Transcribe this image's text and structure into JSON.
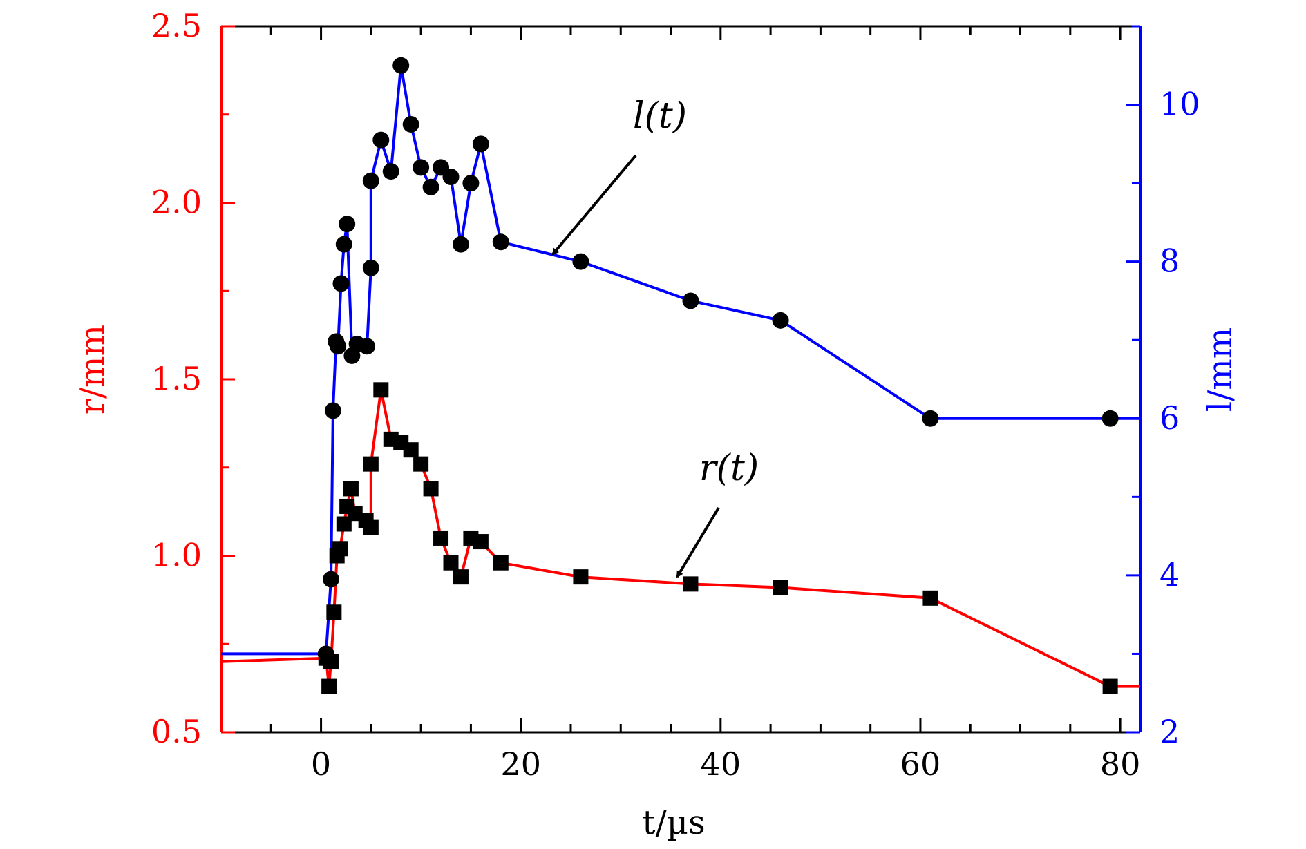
{
  "chart_data": {
    "type": "line",
    "xlabel": "t/µs",
    "ylabel_left": "r/mm",
    "ylabel_right": "l/mm",
    "xlim": [
      -10,
      82
    ],
    "ylim_left": [
      0.5,
      2.5
    ],
    "ylim_right": [
      2,
      11
    ],
    "x_ticks": [
      "0",
      "20",
      "40",
      "60",
      "80"
    ],
    "y_left_ticks": [
      "0.5",
      "1.0",
      "1.5",
      "2.0",
      "2.5"
    ],
    "y_right_ticks": [
      "2",
      "4",
      "6",
      "8",
      "10"
    ],
    "colors": {
      "r_axis": "#ff0000",
      "l_axis": "#0000ff",
      "markers": "#000000"
    },
    "grid": false,
    "annotations": [
      {
        "text": "l(t)",
        "points_to": "l series"
      },
      {
        "text": "r(t)",
        "points_to": "r series"
      }
    ],
    "series": [
      {
        "axis": "left",
        "marker": "square",
        "color": "#ff0000",
        "x": [
          0.5,
          0.8,
          1.0,
          1.3,
          1.6,
          1.9,
          2.3,
          2.6,
          3.0,
          3.4,
          4.5,
          5.0,
          5.0,
          6.0,
          7.0,
          8.0,
          9.0,
          10.0,
          11.0,
          12.0,
          13.0,
          14.0,
          15.0,
          16.0,
          18.0,
          26.0,
          37.0,
          46.0,
          61.0,
          79.0
        ],
        "values": [
          0.71,
          0.63,
          0.7,
          0.84,
          1.0,
          1.02,
          1.09,
          1.14,
          1.19,
          1.12,
          1.1,
          1.08,
          1.26,
          1.47,
          1.33,
          1.32,
          1.3,
          1.26,
          1.19,
          1.05,
          0.98,
          0.94,
          1.05,
          1.04,
          0.98,
          0.94,
          0.92,
          0.91,
          0.88,
          0.63
        ],
        "baseline_value": 0.7
      },
      {
        "axis": "right",
        "marker": "circle",
        "color": "#0000ff",
        "x": [
          0.5,
          1.0,
          1.2,
          1.5,
          1.7,
          2.0,
          2.3,
          2.6,
          3.1,
          3.6,
          4.6,
          5.0,
          5.0,
          6.0,
          7.0,
          8.0,
          9.0,
          10.0,
          11.0,
          12.0,
          13.0,
          14.0,
          15.0,
          16.0,
          18.0,
          26.0,
          37.0,
          46.0,
          61.0,
          79.0
        ],
        "values": [
          3.0,
          3.95,
          6.1,
          6.98,
          6.92,
          7.72,
          8.22,
          8.48,
          6.8,
          6.95,
          6.92,
          7.92,
          9.03,
          9.55,
          9.15,
          10.5,
          9.75,
          9.2,
          8.95,
          9.2,
          9.08,
          8.22,
          9.0,
          9.5,
          8.25,
          8.0,
          7.5,
          7.25,
          6.0,
          6.0
        ],
        "baseline_value": 3.0
      }
    ]
  }
}
